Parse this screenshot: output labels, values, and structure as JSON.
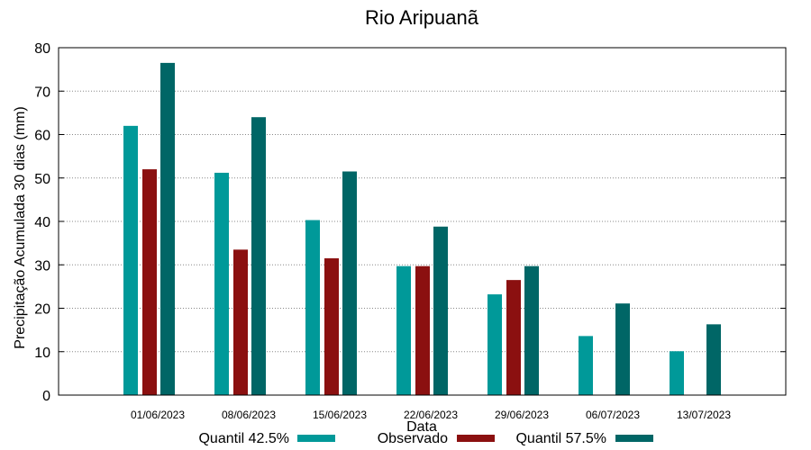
{
  "chart_data": {
    "type": "bar",
    "title": "Rio Aripuanã",
    "xlabel": "Data",
    "ylabel": "Precipitação Acumulada 30 dias (mm)",
    "ylim": [
      0,
      80
    ],
    "yticks": [
      0,
      10,
      20,
      30,
      40,
      50,
      60,
      70,
      80
    ],
    "grid": true,
    "legend_position": "bottom",
    "categories": [
      "01/06/2023",
      "08/06/2023",
      "15/06/2023",
      "22/06/2023",
      "29/06/2023",
      "06/07/2023",
      "13/07/2023"
    ],
    "series": [
      {
        "name": "Quantil 42.5%",
        "color": "#009999",
        "values": [
          62,
          51.2,
          40.3,
          29.7,
          23.2,
          13.6,
          10.1
        ]
      },
      {
        "name": "Observado",
        "color": "#8b1010",
        "values": [
          52,
          33.5,
          31.5,
          29.7,
          26.5,
          null,
          null
        ]
      },
      {
        "name": "Quantil 57.5%",
        "color": "#006666",
        "values": [
          76.5,
          64,
          51.5,
          38.8,
          29.7,
          21.1,
          16.3
        ]
      }
    ]
  }
}
